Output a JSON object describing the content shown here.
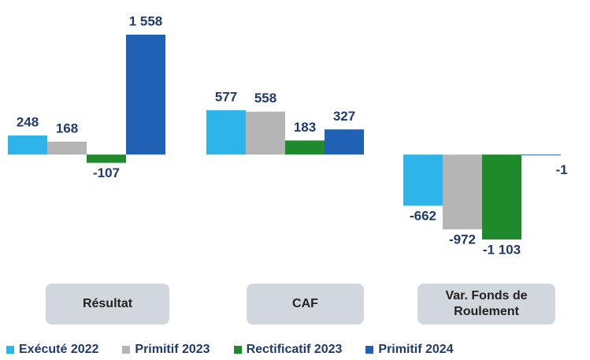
{
  "chart_data": {
    "type": "bar",
    "categories": [
      "Résultat",
      "CAF",
      "Var. Fonds de Roulement"
    ],
    "series": [
      {
        "name": "Exécuté 2022",
        "color": "#2fb4e9",
        "values": [
          248,
          577,
          -662
        ],
        "value_labels": [
          "248",
          "577",
          "-662"
        ]
      },
      {
        "name": "Primitif 2023",
        "color": "#b5b5b5",
        "values": [
          168,
          558,
          -972
        ],
        "value_labels": [
          "168",
          "558",
          "-972"
        ]
      },
      {
        "name": "Rectificatif 2023",
        "color": "#1e8a2c",
        "values": [
          -107,
          183,
          -1103
        ],
        "value_labels": [
          "-107",
          "183",
          "-1 103"
        ]
      },
      {
        "name": "Primitif 2024",
        "color": "#1f62b5",
        "values": [
          1558,
          327,
          -1
        ],
        "value_labels": [
          "1 558",
          "327",
          "-1"
        ]
      }
    ]
  }
}
